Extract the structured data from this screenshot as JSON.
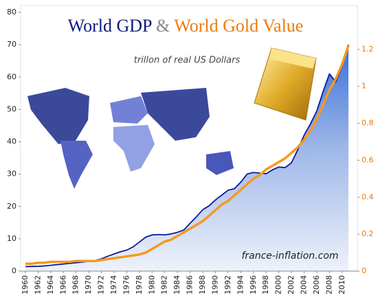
{
  "chart_data": {
    "type": "line",
    "subtitle": "trillon of real US Dollars",
    "title_joiner": "&",
    "annotation": "france-inflation.com",
    "x": [
      1960,
      1961,
      1962,
      1963,
      1964,
      1965,
      1966,
      1967,
      1968,
      1969,
      1970,
      1971,
      1972,
      1973,
      1974,
      1975,
      1976,
      1977,
      1978,
      1979,
      1980,
      1981,
      1982,
      1983,
      1984,
      1985,
      1986,
      1987,
      1988,
      1989,
      1990,
      1991,
      1992,
      1993,
      1994,
      1995,
      1996,
      1997,
      1998,
      1999,
      2000,
      2001,
      2002,
      2003,
      2004,
      2005,
      2006,
      2007,
      2008,
      2009,
      2010,
      2011
    ],
    "xlim": [
      1960,
      2011
    ],
    "xticks": [
      1960,
      1962,
      1964,
      1966,
      1968,
      1970,
      1972,
      1974,
      1976,
      1978,
      1980,
      1982,
      1984,
      1986,
      1988,
      1990,
      1992,
      1994,
      1996,
      1998,
      2000,
      2002,
      2004,
      2006,
      2008,
      2010
    ],
    "ylim": [
      0,
      80
    ],
    "yticks": [
      0,
      10,
      20,
      30,
      40,
      50,
      60,
      70,
      80
    ],
    "y2lim": [
      0,
      1.4
    ],
    "y2ticks": [
      0,
      0.2,
      0.4,
      0.6,
      0.8,
      1,
      1.2
    ],
    "series": [
      {
        "name": "World GDP",
        "color": "#0a1a9e",
        "values": [
          1.4,
          1.45,
          1.5,
          1.6,
          1.8,
          2.0,
          2.2,
          2.4,
          2.6,
          2.8,
          3.0,
          3.3,
          3.8,
          4.6,
          5.3,
          6.0,
          6.5,
          7.5,
          9.0,
          10.5,
          11.2,
          11.3,
          11.2,
          11.5,
          12.0,
          12.7,
          14.8,
          16.8,
          19.0,
          20.2,
          22.0,
          23.5,
          25.0,
          25.5,
          27.5,
          30.0,
          30.5,
          30.3,
          30.1,
          31.3,
          32.2,
          32.0,
          33.5,
          37.5,
          42.0,
          45.5,
          49.5,
          55.5,
          61.0,
          58.5,
          63.5,
          70.0
        ]
      },
      {
        "name": "World Gold Value",
        "color": "#f39a1e",
        "axis": "y2",
        "values": [
          0.04,
          0.04,
          0.045,
          0.045,
          0.05,
          0.05,
          0.05,
          0.05,
          0.055,
          0.055,
          0.055,
          0.055,
          0.06,
          0.065,
          0.07,
          0.075,
          0.08,
          0.085,
          0.09,
          0.1,
          0.12,
          0.14,
          0.16,
          0.17,
          0.19,
          0.21,
          0.23,
          0.25,
          0.27,
          0.3,
          0.33,
          0.36,
          0.38,
          0.41,
          0.44,
          0.47,
          0.5,
          0.52,
          0.55,
          0.57,
          0.59,
          0.61,
          0.64,
          0.67,
          0.71,
          0.76,
          0.82,
          0.9,
          0.98,
          1.04,
          1.12,
          1.22
        ]
      }
    ]
  }
}
